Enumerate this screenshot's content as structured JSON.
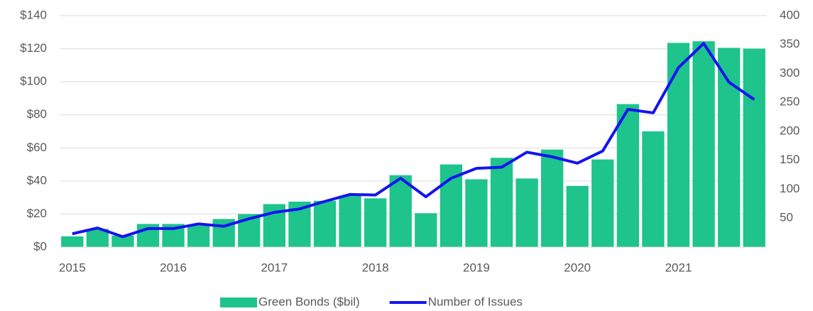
{
  "chart_data": {
    "type": "bar",
    "categories": [
      "2015",
      null,
      null,
      null,
      "2016",
      null,
      null,
      null,
      "2017",
      null,
      null,
      null,
      "2018",
      null,
      null,
      null,
      "2019",
      null,
      null,
      null,
      "2020",
      null,
      null,
      null,
      "2021",
      null,
      null,
      null
    ],
    "series": [
      {
        "name": "Green Bonds ($bil)",
        "type": "bar",
        "color": "#1ec48b",
        "values": [
          6.5,
          11,
          7,
          14,
          14,
          13,
          17,
          20,
          26,
          27.5,
          28,
          31,
          29.5,
          43.5,
          20.5,
          50,
          41,
          54,
          41.5,
          59,
          37,
          53,
          86.5,
          70,
          123.5,
          124.5,
          120.5,
          120
        ]
      },
      {
        "name": "Number of Issues",
        "type": "line",
        "axis": "y2",
        "color": "#1414f0",
        "values": [
          23,
          33,
          18,
          32,
          32,
          40,
          36,
          49,
          60,
          66,
          79,
          91,
          90,
          119,
          87,
          119,
          136,
          138,
          164,
          156,
          145,
          166,
          238,
          232,
          310,
          352,
          285,
          255
        ]
      }
    ],
    "ylim": [
      0,
      140
    ],
    "yticks": [
      {
        "value": 0,
        "label": "$0"
      },
      {
        "value": 20,
        "label": "$20"
      },
      {
        "value": 40,
        "label": "$40"
      },
      {
        "value": 60,
        "label": "$60"
      },
      {
        "value": 80,
        "label": "$80"
      },
      {
        "value": 100,
        "label": "$100"
      },
      {
        "value": 120,
        "label": "$120"
      },
      {
        "value": 140,
        "label": "$140"
      }
    ],
    "y2lim": [
      0,
      400
    ],
    "y2ticks": [
      50,
      100,
      150,
      200,
      250,
      300,
      350,
      400
    ],
    "grid": true,
    "legend": "bottom"
  }
}
